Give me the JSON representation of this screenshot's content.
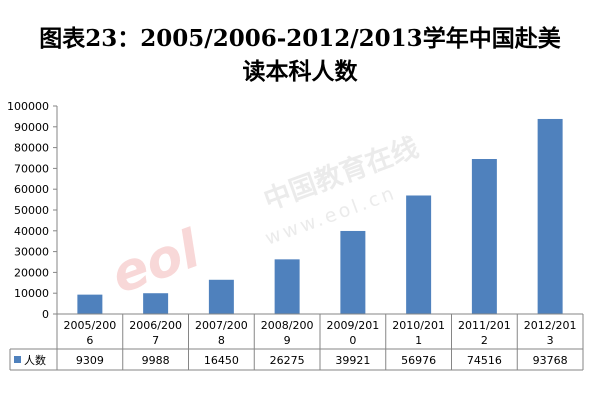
{
  "chart_data": {
    "type": "bar",
    "title_line1": "图表23：2005/2006-2012/2013学年中国赴美",
    "title_line2": "读本科人数",
    "categories": [
      [
        "2005/200",
        "6"
      ],
      [
        "2006/200",
        "7"
      ],
      [
        "2007/200",
        "8"
      ],
      [
        "2008/200",
        "9"
      ],
      [
        "2009/201",
        "0"
      ],
      [
        "2010/201",
        "1"
      ],
      [
        "2011/201",
        "2"
      ],
      [
        "2012/201",
        "3"
      ]
    ],
    "series": [
      {
        "name": "人数",
        "values": [
          9309,
          9988,
          16450,
          26275,
          39921,
          56976,
          74516,
          93768
        ],
        "color": "#4f81bd"
      }
    ],
    "ylim": [
      0,
      100000
    ],
    "yticks": [
      "0",
      "10000",
      "20000",
      "30000",
      "40000",
      "50000",
      "60000",
      "70000",
      "80000",
      "90000",
      "100000"
    ],
    "grid": false,
    "legend": "data-table-left"
  },
  "watermark": {
    "logo_text": "eol",
    "site_text": "中国教育在线",
    "url_text": "www.eol.cn"
  }
}
